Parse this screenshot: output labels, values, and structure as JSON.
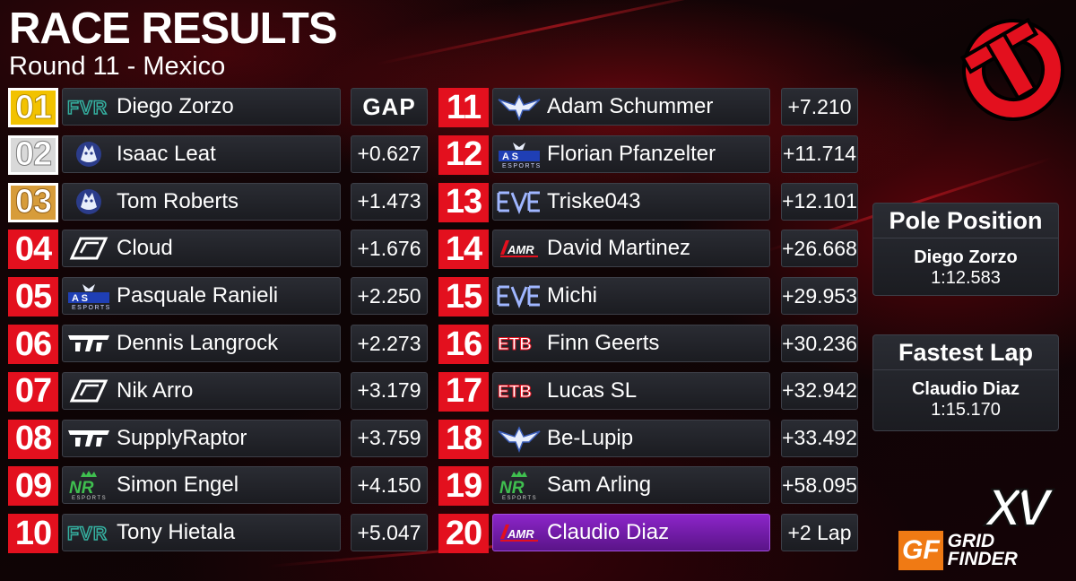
{
  "title": "RACE RESULTS",
  "subtitle": "Round 11 - Mexico",
  "gap_header": "GAP",
  "left_column": [
    {
      "pos": "01",
      "style": "gold",
      "team": "fvr",
      "name": "Diego Zorzo",
      "gap": "GAP"
    },
    {
      "pos": "02",
      "style": "silver",
      "team": "wolf",
      "name": "Isaac Leat",
      "gap": "+0.627"
    },
    {
      "pos": "03",
      "style": "bronze",
      "team": "wolf",
      "name": "Tom Roberts",
      "gap": "+1.473"
    },
    {
      "pos": "04",
      "style": "red",
      "team": "lcd",
      "name": "Cloud",
      "gap": "+1.676"
    },
    {
      "pos": "05",
      "style": "red",
      "team": "as",
      "name": "Pasquale Ranieli",
      "gap": "+2.250"
    },
    {
      "pos": "06",
      "style": "red",
      "team": "tm",
      "name": "Dennis Langrock",
      "gap": "+2.273"
    },
    {
      "pos": "07",
      "style": "red",
      "team": "lcd",
      "name": "Nik Arro",
      "gap": "+3.179"
    },
    {
      "pos": "08",
      "style": "red",
      "team": "tm",
      "name": "SupplyRaptor",
      "gap": "+3.759"
    },
    {
      "pos": "09",
      "style": "red",
      "team": "nr",
      "name": "Simon Engel",
      "gap": "+4.150"
    },
    {
      "pos": "10",
      "style": "red",
      "team": "fvr",
      "name": "Tony Hietala",
      "gap": "+5.047"
    }
  ],
  "right_column": [
    {
      "pos": "11",
      "style": "red",
      "team": "eagle",
      "name": "Adam Schummer",
      "gap": "+7.210"
    },
    {
      "pos": "12",
      "style": "red",
      "team": "as",
      "name": "Florian Pfanzelter",
      "gap": "+11.714"
    },
    {
      "pos": "13",
      "style": "red",
      "team": "eve",
      "name": "Triske043",
      "gap": "+12.101"
    },
    {
      "pos": "14",
      "style": "red",
      "team": "amr",
      "name": "David Martinez",
      "gap": "+26.668"
    },
    {
      "pos": "15",
      "style": "red",
      "team": "eve",
      "name": "Michi",
      "gap": "+29.953"
    },
    {
      "pos": "16",
      "style": "red",
      "team": "etb",
      "name": "Finn Geerts",
      "gap": "+30.236"
    },
    {
      "pos": "17",
      "style": "red",
      "team": "etb",
      "name": "Lucas SL",
      "gap": "+32.942"
    },
    {
      "pos": "18",
      "style": "red",
      "team": "eagle",
      "name": "Be-Lupip",
      "gap": "+33.492"
    },
    {
      "pos": "19",
      "style": "red",
      "team": "nr",
      "name": "Sam Arling",
      "gap": "+58.095"
    },
    {
      "pos": "20",
      "style": "red",
      "team": "amr",
      "name": "Claudio Diaz",
      "gap": "+2 Lap",
      "highlight": true
    }
  ],
  "pole_position": {
    "label": "Pole Position",
    "driver": "Diego Zorzo",
    "time": "1:12.583"
  },
  "fastest_lap": {
    "label": "Fastest Lap",
    "driver": "Claudio Diaz",
    "time": "1:15.170"
  },
  "branding": {
    "season_mark": "XV",
    "logo_line1": "GRID",
    "logo_line2": "FINDER",
    "logo_mark": "GF"
  },
  "colors": {
    "position_red": "#e3101e",
    "gold": "#f2c200",
    "silver": "#d9d9d9",
    "bronze": "#d79c3a",
    "fastest_lap_purple": "#8c25c9",
    "panel": "#24262c"
  }
}
